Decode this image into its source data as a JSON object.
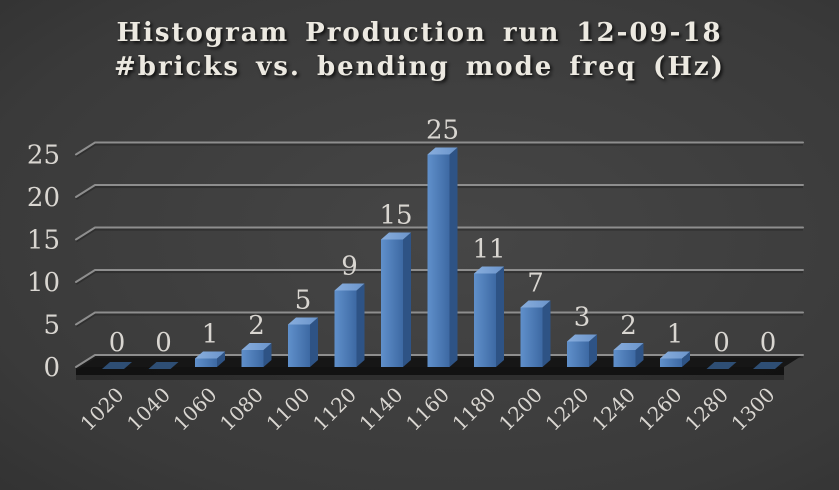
{
  "chart_data": {
    "type": "bar",
    "style": "3d-column-dark",
    "title": "Histogram Production run 12-09-18",
    "subtitle": "#bricks vs. bending mode freq (Hz)",
    "categories": [
      "1020",
      "1040",
      "1060",
      "1080",
      "1100",
      "1120",
      "1140",
      "1160",
      "1180",
      "1200",
      "1220",
      "1240",
      "1260",
      "1280",
      "1300"
    ],
    "values": [
      0,
      0,
      1,
      2,
      5,
      9,
      15,
      25,
      11,
      7,
      3,
      2,
      1,
      0,
      0
    ],
    "xlabel": "",
    "ylabel": "",
    "yticks": [
      0,
      5,
      10,
      15,
      20,
      25
    ],
    "ylim": [
      0,
      25
    ],
    "grid": true,
    "legend": false,
    "colors": {
      "background_center": "#464646",
      "background_mid": "#3a3a3a",
      "background_edge": "#1e1e1e",
      "title_text": "#ece9e1",
      "axis_text": "#d9d6d1",
      "gridline": "#8e8e8e",
      "gridline_shadow": "#222222",
      "bar_front_light": "#6090cb",
      "bar_front_dark": "#3d69a3",
      "bar_top_light": "#89aedd",
      "bar_top_dark": "#6a94cb",
      "bar_side": "#2e5385",
      "bar_zero_patch": "#2e4e74",
      "floor_top": "#161616",
      "floor_front": "#0e0e0e"
    }
  }
}
